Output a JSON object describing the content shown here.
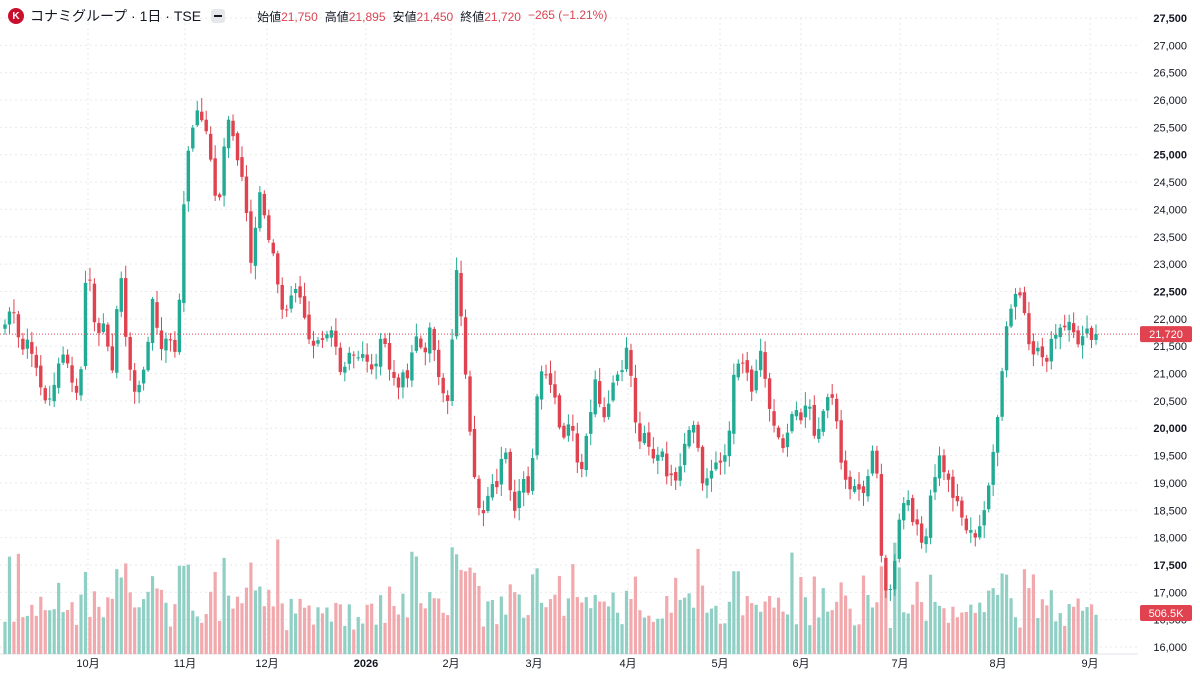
{
  "header": {
    "logo_letter": "K",
    "title": "コナミグループ · 1日 · TSE",
    "open_label": "始値",
    "open": "21,750",
    "high_label": "高値",
    "high": "21,895",
    "low_label": "安値",
    "low": "21,450",
    "close_label": "終値",
    "close": "21,720",
    "change": "−265 (−1.21%)"
  },
  "chart_data": {
    "type": "candlestick",
    "title": "コナミグループ · 1日 · TSE",
    "ylim": [
      16000,
      27500
    ],
    "y_ticks": [
      "27,500",
      "27,000",
      "26,500",
      "26,000",
      "25,500",
      "25,000",
      "24,500",
      "24,000",
      "23,500",
      "23,000",
      "22,500",
      "22,000",
      "21,500",
      "21,000",
      "20,500",
      "20,000",
      "19,500",
      "19,000",
      "18,500",
      "18,000",
      "17,500",
      "17,000",
      "16,500",
      "16,000"
    ],
    "x_ticks": [
      "10月",
      "11月",
      "12月",
      "2026",
      "2月",
      "3月",
      "4月",
      "5月",
      "6月",
      "7月",
      "8月",
      "9月"
    ],
    "last_price_label": "21,720",
    "last_price": 21720,
    "last_volume_label": "506.5K",
    "grid": true,
    "colors": {
      "up": "#22ab94",
      "down": "#e0424f",
      "up_vol": "#8fcfc4",
      "down_vol": "#f1a9ad",
      "grid": "#e8e9ec",
      "last_price_line": "#e0424f"
    },
    "price_path": [
      [
        21900,
        22300,
        21400,
        21700
      ],
      [
        20850,
        20500,
        20720,
        21500
      ],
      [
        21000,
        20450,
        23150,
        21900
      ],
      [
        21800,
        21000,
        22900,
        21300
      ],
      [
        20500,
        21200,
        22250,
        21500
      ],
      [
        21700,
        21400,
        24800,
        25700
      ],
      [
        25700,
        25000,
        23900,
        25700
      ],
      [
        25200,
        24600,
        23100,
        24400
      ],
      [
        23500,
        22900,
        22000,
        22500
      ],
      [
        22400,
        21700,
        21500,
        21800
      ],
      [
        21700,
        20800,
        21300,
        21250
      ],
      [
        21400,
        21000,
        21900,
        20900
      ],
      [
        20800,
        21000,
        21700,
        21400
      ],
      [
        21800,
        20700,
        20500,
        22900
      ],
      [
        21300,
        19500,
        18200,
        18800
      ],
      [
        19000,
        19700,
        18500,
        19200
      ],
      [
        18600,
        21000,
        21100,
        20600
      ],
      [
        19800,
        20300,
        19000,
        20100
      ],
      [
        20900,
        20200,
        20800,
        21100
      ],
      [
        21500,
        19800,
        19800,
        19400
      ],
      [
        19700,
        19000,
        19200,
        19900
      ],
      [
        20200,
        19000,
        19200,
        19300
      ],
      [
        19600,
        21100,
        21200,
        20600
      ],
      [
        21400,
        20500,
        19900,
        19500
      ],
      [
        20300,
        20100,
        20500,
        19700
      ],
      [
        20500,
        20600,
        19200,
        18900
      ],
      [
        18800,
        19000,
        19800,
        17200
      ],
      [
        17000,
        18400,
        18800,
        18200
      ],
      [
        17800,
        19000,
        19500,
        19000
      ],
      [
        18600,
        18200,
        18000,
        18300
      ],
      [
        18900,
        20300,
        21800,
        22500
      ],
      [
        22400,
        21500,
        21400,
        21200
      ],
      [
        21800,
        21900,
        22000,
        21550
      ],
      [
        21750,
        21720
      ]
    ]
  }
}
